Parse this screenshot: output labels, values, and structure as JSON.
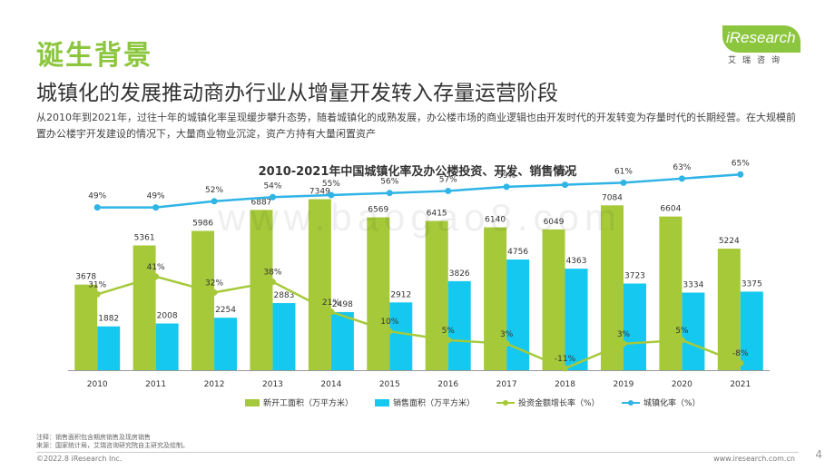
{
  "header": {
    "title": "诞生背景",
    "subtitle": "城镇化的发展推动商办行业从增量开发转入存量运营阶段",
    "intro": "从2010年到2021年，过往十年的城镇化率呈现缓步攀升态势，随着城镇化的成熟发展，办公楼市场的商业逻辑也由开发时代的开发转变为存量时代的长期经营。在大规模前置办公楼宇开发建设的情况下，大量商业物业沉淀，资产方持有大量闲置资产"
  },
  "logo": {
    "text": "iResearch",
    "cn": "艾瑞咨询"
  },
  "watermark": "www.baogao8.com",
  "chart_data": {
    "type": "bar",
    "title": "2010-2021年中国城镇化率及办公楼投资、开发、销售情况",
    "categories": [
      "2010",
      "2011",
      "2012",
      "2013",
      "2014",
      "2015",
      "2016",
      "2017",
      "2018",
      "2019",
      "2020",
      "2021"
    ],
    "series": [
      {
        "name": "新开工面积（万平方米）",
        "type": "bar",
        "color": "#a6c93a",
        "values": [
          3678,
          5361,
          5986,
          6887,
          7349,
          6569,
          6415,
          6140,
          6049,
          7084,
          6604,
          5224
        ],
        "labels": [
          "3678",
          "5361",
          "5986",
          "6887",
          "7349",
          "6569",
          "6415",
          "6140",
          "6049",
          "7084",
          "6604",
          "5224"
        ]
      },
      {
        "name": "销售面积（万平方米）",
        "type": "bar",
        "color": "#15c8ef",
        "values": [
          1882,
          2008,
          2254,
          2883,
          2498,
          2912,
          3826,
          4756,
          4363,
          3723,
          3334,
          3375
        ],
        "labels": [
          "1882",
          "2008",
          "2254",
          "2883",
          "2498",
          "2912",
          "3826",
          "4756",
          "4363",
          "3723",
          "3334",
          "3375"
        ]
      },
      {
        "name": "投资金额增长率（%）",
        "type": "line",
        "color": "#a6c93a",
        "values": [
          31,
          41,
          32,
          38,
          21,
          10,
          5,
          3,
          -11,
          3,
          5,
          -8
        ],
        "labels": [
          "31%",
          "41%",
          "32%",
          "38%",
          "21%",
          "10%",
          "5%",
          "3%",
          "-11%",
          "3%",
          "5%",
          "-8%"
        ]
      },
      {
        "name": "城镇化率（%）",
        "type": "line",
        "color": "#2fb4e6",
        "values": [
          49,
          49,
          52,
          54,
          55,
          56,
          57,
          59,
          60,
          61,
          63,
          65
        ],
        "labels": [
          "49%",
          "49%",
          "52%",
          "54%",
          "55%",
          "56%",
          "57%",
          "59%",
          "60%",
          "61%",
          "63%",
          "65%"
        ]
      }
    ],
    "ylim_bars": [
      0,
      8500
    ],
    "ylim_growth": [
      -12,
      100
    ],
    "ylim_urban": [
      -30,
      66
    ],
    "legend_position": "bottom",
    "grid": false
  },
  "footer": {
    "notes": [
      "注释：销售面积包含期房销售及现房销售",
      "来源：国家统计局，艾瑞咨询研究院自主研究及绘制。"
    ],
    "copyright": "©2022.8 iResearch Inc.",
    "website": "www.iresearch.com.cn",
    "page": "4"
  }
}
